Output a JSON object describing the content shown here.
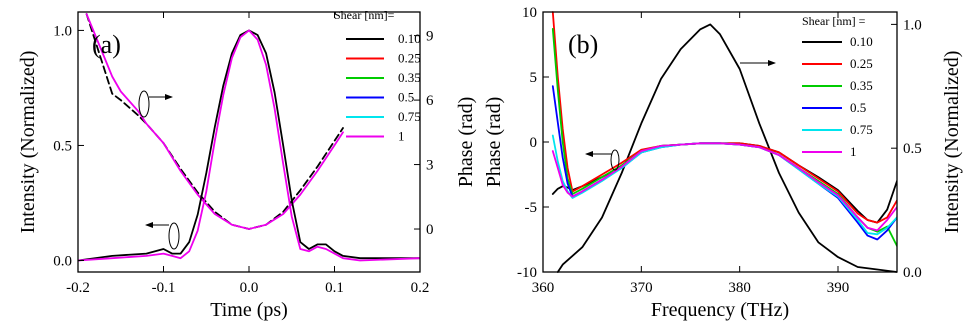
{
  "chart_data": [
    {
      "id": "a",
      "panel_label": "(a)",
      "type": "line",
      "xlabel": "Time (ps)",
      "ylabel_left": "Intensity (Normalized)",
      "ylabel_right": "Phase (rad)",
      "xlim": [
        -0.2,
        0.2
      ],
      "ylim_left": [
        -0.05,
        1.08
      ],
      "ylim_right": [
        -2.0,
        10.1
      ],
      "xticks": [
        -0.2,
        -0.1,
        0.0,
        0.1,
        0.2
      ],
      "xtick_labels": [
        "-0.2",
        "-0.1",
        "0.0",
        "0.1",
        "0.2"
      ],
      "yticks_left": [
        0.0,
        0.5,
        1.0
      ],
      "ytick_labels_left": [
        "0.0",
        "0.5",
        "1.0"
      ],
      "yticks_right": [
        0,
        3,
        6,
        9
      ],
      "ytick_labels_right": [
        "0",
        "3",
        "6",
        "9"
      ],
      "legend": {
        "title": "Shear [nm]=",
        "placement": "top-right",
        "entries": [
          {
            "label": "0.10",
            "color": "#000000"
          },
          {
            "label": "0.25",
            "color": "#ff0000"
          },
          {
            "label": "0.35",
            "color": "#00cc00"
          },
          {
            "label": "0.5",
            "color": "#0000ff"
          },
          {
            "label": "0.75",
            "color": "#00e5ee"
          },
          {
            "label": "1",
            "color": "#ee00ee"
          }
        ]
      },
      "intensity": {
        "axis": "left",
        "x": [
          -0.2,
          -0.16,
          -0.12,
          -0.1,
          -0.09,
          -0.08,
          -0.07,
          -0.06,
          -0.05,
          -0.04,
          -0.03,
          -0.02,
          -0.01,
          0.0,
          0.01,
          0.02,
          0.03,
          0.04,
          0.05,
          0.06,
          0.07,
          0.08,
          0.09,
          0.1,
          0.11,
          0.13,
          0.2
        ],
        "series": [
          {
            "label": "0.10",
            "values": [
              0.0,
              0.02,
              0.03,
              0.05,
              0.03,
              0.03,
              0.08,
              0.2,
              0.38,
              0.58,
              0.76,
              0.9,
              0.98,
              1.0,
              0.98,
              0.9,
              0.73,
              0.5,
              0.26,
              0.08,
              0.05,
              0.07,
              0.07,
              0.04,
              0.02,
              0.01,
              0.01
            ]
          },
          {
            "label": "1",
            "values": [
              0.0,
              0.01,
              0.02,
              0.03,
              0.02,
              0.01,
              0.04,
              0.13,
              0.3,
              0.52,
              0.72,
              0.88,
              0.97,
              1.0,
              0.96,
              0.85,
              0.66,
              0.42,
              0.19,
              0.05,
              0.04,
              0.06,
              0.05,
              0.03,
              0.01,
              0.0,
              0.01
            ]
          }
        ]
      },
      "phase": {
        "axis": "right",
        "x": [
          -0.19,
          -0.16,
          -0.15,
          -0.13,
          -0.12,
          -0.1,
          -0.08,
          -0.06,
          -0.04,
          -0.02,
          0.0,
          0.02,
          0.04,
          0.06,
          0.08,
          0.1,
          0.11
        ],
        "series": [
          {
            "label": "0.10",
            "values": [
              10.0,
              6.3,
              6.0,
              5.3,
              4.9,
              4.0,
              2.8,
              1.7,
              0.8,
              0.2,
              0.0,
              0.2,
              0.8,
              1.8,
              2.9,
              4.1,
              4.7
            ]
          },
          {
            "label": "1",
            "values": [
              10.0,
              7.1,
              6.4,
              5.5,
              4.9,
              4.0,
              2.7,
              1.6,
              0.7,
              0.2,
              0.0,
              0.2,
              0.7,
              1.6,
              2.7,
              3.9,
              4.5
            ]
          }
        ]
      }
    },
    {
      "id": "b",
      "panel_label": "(b)",
      "type": "line",
      "xlabel": "Frequency (THz)",
      "ylabel_left": "Phase (rad)",
      "ylabel_right": "Intensity (Normalized)",
      "xlim": [
        360,
        396
      ],
      "ylim_left": [
        -10,
        10
      ],
      "ylim_right": [
        0.0,
        1.05
      ],
      "xticks": [
        360,
        370,
        380,
        390
      ],
      "xtick_labels": [
        "360",
        "370",
        "380",
        "390"
      ],
      "yticks_left": [
        -10,
        -5,
        0,
        5,
        10
      ],
      "ytick_labels_left": [
        "-10",
        "-5",
        "0",
        "5",
        "10"
      ],
      "yticks_right": [
        0.0,
        0.5,
        1.0
      ],
      "ytick_labels_right": [
        "0.0",
        "0.5",
        "1.0"
      ],
      "legend": {
        "title": "Shear [nm] =",
        "placement": "top-right",
        "entries": [
          {
            "label": "0.10",
            "color": "#000000"
          },
          {
            "label": "0.25",
            "color": "#ff0000"
          },
          {
            "label": "0.35",
            "color": "#00cc00"
          },
          {
            "label": "0.5",
            "color": "#0000ff"
          },
          {
            "label": "0.75",
            "color": "#00e5ee"
          },
          {
            "label": "1",
            "color": "#ee00ee"
          }
        ]
      },
      "intensity": {
        "axis": "right",
        "label": "0.10",
        "x": [
          361.5,
          362,
          364,
          366,
          368,
          370,
          372,
          374,
          376,
          377,
          378,
          380,
          382,
          384,
          386,
          388,
          390,
          392,
          394,
          396
        ],
        "values": [
          0.0,
          0.03,
          0.1,
          0.22,
          0.4,
          0.6,
          0.78,
          0.9,
          0.98,
          1.0,
          0.96,
          0.82,
          0.6,
          0.4,
          0.24,
          0.12,
          0.06,
          0.02,
          0.01,
          0.0
        ]
      },
      "phase": {
        "axis": "left",
        "x": [
          361,
          361.5,
          362,
          362.5,
          363,
          364,
          366,
          368,
          370,
          372,
          374,
          376,
          378,
          380,
          382,
          384,
          386,
          388,
          390,
          392,
          393,
          394,
          395,
          396
        ],
        "series": [
          {
            "label": "0.10",
            "values": [
              -4.0,
              -3.6,
              -3.4,
              -3.5,
              -3.7,
              -3.4,
              -2.7,
              -1.9,
              -0.8,
              -0.3,
              -0.2,
              -0.1,
              -0.1,
              -0.1,
              -0.3,
              -0.8,
              -1.8,
              -2.7,
              -3.7,
              -5.3,
              -6.0,
              -6.2,
              -5.2,
              -3.0
            ]
          },
          {
            "label": "0.25",
            "values": [
              10.0,
              5.0,
              1.0,
              -2.0,
              -3.8,
              -3.4,
              -2.5,
              -1.6,
              -0.6,
              -0.3,
              -0.2,
              -0.1,
              -0.1,
              -0.1,
              -0.3,
              -0.8,
              -1.8,
              -2.8,
              -3.8,
              -5.5,
              -6.0,
              -6.2,
              -5.8,
              -4.5
            ]
          },
          {
            "label": "0.35",
            "values": [
              8.7,
              4.0,
              0.0,
              -2.8,
              -4.0,
              -3.6,
              -2.7,
              -1.8,
              -0.7,
              -0.3,
              -0.2,
              -0.1,
              -0.1,
              -0.2,
              -0.4,
              -1.0,
              -2.0,
              -3.0,
              -4.0,
              -5.8,
              -6.6,
              -6.9,
              -6.5,
              -8.0
            ]
          },
          {
            "label": "0.5",
            "values": [
              4.3,
              1.5,
              -1.2,
              -3.2,
              -4.2,
              -3.8,
              -2.9,
              -2.0,
              -0.8,
              -0.4,
              -0.2,
              -0.1,
              -0.1,
              -0.2,
              -0.4,
              -1.0,
              -2.1,
              -3.2,
              -4.3,
              -6.2,
              -7.2,
              -7.5,
              -6.8,
              -5.8
            ]
          },
          {
            "label": "0.75",
            "values": [
              0.5,
              -1.5,
              -3.0,
              -3.8,
              -4.3,
              -3.9,
              -3.0,
              -2.0,
              -0.8,
              -0.4,
              -0.2,
              -0.1,
              -0.1,
              -0.2,
              -0.4,
              -1.0,
              -2.1,
              -3.2,
              -4.2,
              -6.0,
              -7.0,
              -7.1,
              -6.6,
              -5.8
            ]
          },
          {
            "label": "1",
            "values": [
              -0.7,
              -2.0,
              -3.3,
              -3.9,
              -4.2,
              -3.8,
              -2.9,
              -1.9,
              -0.7,
              -0.3,
              -0.2,
              -0.1,
              -0.1,
              -0.2,
              -0.4,
              -1.0,
              -2.0,
              -3.1,
              -4.1,
              -5.8,
              -6.6,
              -6.8,
              -6.0,
              -5.0
            ]
          }
        ]
      }
    }
  ]
}
